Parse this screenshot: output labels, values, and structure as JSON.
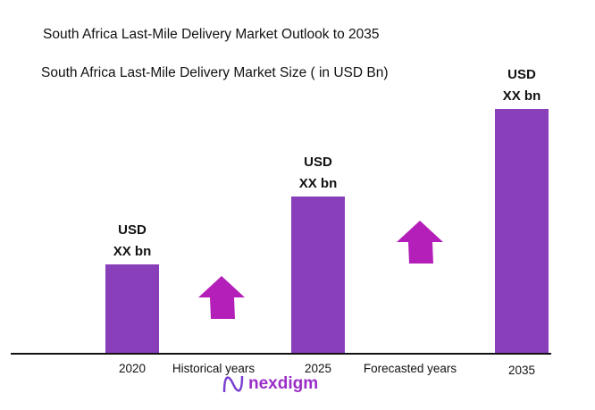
{
  "chart_data": {
    "type": "bar",
    "title": "South Africa Last-Mile Delivery Market Outlook to 2035",
    "subtitle": "South Africa Last-Mile Delivery Market Size ( in USD Bn)",
    "categories": [
      "2020",
      "2025",
      "2035"
    ],
    "values": [
      1.0,
      1.76,
      2.74
    ],
    "data_labels": [
      [
        "USD",
        "XX bn"
      ],
      [
        "USD",
        "XX bn"
      ],
      [
        "USD",
        "XX bn"
      ]
    ],
    "period_labels": [
      "Historical years",
      "Forecasted years"
    ],
    "bar_color": "#8a3fba",
    "arrow_color": "#b31fb8",
    "grid": false
  },
  "brand": "nexdigm"
}
